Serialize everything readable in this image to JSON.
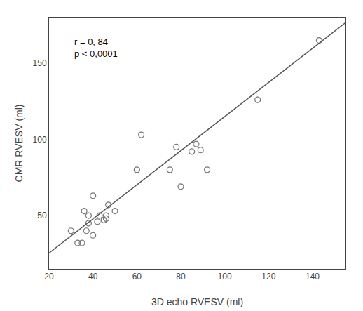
{
  "chart_data": {
    "type": "scatter",
    "xlabel": "3D echo RVESV (ml)",
    "ylabel": "CMR RVESV (ml)",
    "annotations": [
      "r = 0, 84",
      "p < 0,0001"
    ],
    "series": [
      {
        "type": "scatter",
        "x": [
          30,
          33,
          35,
          36,
          37,
          38,
          38,
          40,
          40,
          42,
          43,
          45,
          45,
          46,
          46,
          47,
          50,
          60,
          62,
          75,
          78,
          80,
          85,
          87,
          89,
          92,
          115,
          143
        ],
        "values": [
          40,
          32,
          32,
          53,
          40,
          45,
          50,
          63,
          37,
          46,
          50,
          47,
          47,
          48,
          50,
          57,
          53,
          80,
          103,
          80,
          95,
          69,
          92,
          97,
          93,
          80,
          126,
          165
        ],
        "color": "#777777",
        "marker": "circle-open"
      },
      {
        "type": "line",
        "x": [
          20,
          155
        ],
        "values": [
          25.4,
          176.6
        ],
        "color": "#555555"
      }
    ],
    "xlim": [
      20,
      155
    ],
    "ylim": [
      15,
      180
    ],
    "xticks": [
      20,
      40,
      60,
      80,
      100,
      120,
      140
    ],
    "yticks": [
      50,
      100,
      150
    ],
    "grid": false
  }
}
